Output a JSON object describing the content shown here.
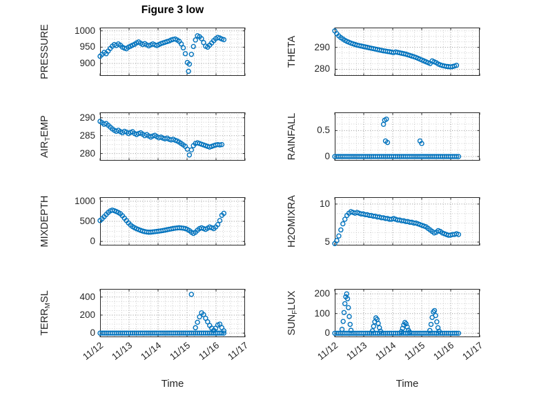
{
  "title": "Figure 3 low",
  "colors": {
    "marker": "#0072BD",
    "axis": "#262626",
    "grid_major": "#8f8f8f",
    "grid_minor": "#cccccc"
  },
  "axes_common": {
    "xlabel": "Time",
    "xlim": [
      0,
      5
    ],
    "xticks": [
      0,
      1,
      2,
      3,
      4,
      5
    ],
    "xtick_labels": [
      "11/12",
      "11/13",
      "11/14",
      "11/15",
      "11/16",
      "11/17"
    ],
    "x_minor_step": 0.25,
    "grid": "major+minor dotted",
    "marker": "o"
  },
  "chart_data": [
    {
      "id": "pressure",
      "type": "scatter",
      "panel": {
        "row": 0,
        "col": 0
      },
      "ylabel_parts": [
        {
          "t": "PRESSURE",
          "sub": false
        }
      ],
      "ylim": [
        862,
        1010
      ],
      "yticks": [
        900,
        950,
        1000
      ],
      "ytick_labels": [
        "900",
        "950",
        "1000"
      ],
      "x": [
        0,
        0.07,
        0.14,
        0.21,
        0.28,
        0.35,
        0.42,
        0.49,
        0.56,
        0.63,
        0.7,
        0.77,
        0.84,
        0.91,
        0.98,
        1.05,
        1.12,
        1.19,
        1.26,
        1.33,
        1.4,
        1.47,
        1.54,
        1.61,
        1.68,
        1.75,
        1.82,
        1.89,
        1.96,
        2.03,
        2.1,
        2.17,
        2.24,
        2.31,
        2.38,
        2.45,
        2.52,
        2.59,
        2.66,
        2.73,
        2.8,
        2.87,
        2.94,
        3.01,
        3.05,
        3.08,
        3.15,
        3.22,
        3.29,
        3.36,
        3.43,
        3.5,
        3.57,
        3.64,
        3.71,
        3.78,
        3.85,
        3.92,
        3.99,
        4.06,
        4.13,
        4.2,
        4.27
      ],
      "y": [
        922,
        928,
        934,
        930,
        938,
        946,
        953,
        958,
        955,
        960,
        956,
        950,
        947,
        945,
        950,
        953,
        956,
        959,
        963,
        966,
        962,
        958,
        961,
        957,
        954,
        957,
        960,
        957,
        955,
        958,
        961,
        963,
        965,
        967,
        969,
        972,
        974,
        975,
        972,
        968,
        960,
        948,
        930,
        903,
        876,
        898,
        928,
        952,
        972,
        985,
        982,
        976,
        964,
        953,
        950,
        956,
        963,
        970,
        976,
        980,
        978,
        975,
        973
      ]
    },
    {
      "id": "theta",
      "type": "scatter",
      "panel": {
        "row": 0,
        "col": 1
      },
      "ylabel_parts": [
        {
          "t": "THETA",
          "sub": false
        }
      ],
      "ylim": [
        277,
        299
      ],
      "yticks": [
        280,
        290
      ],
      "ytick_labels": [
        "280",
        "290"
      ],
      "x": [
        0,
        0.07,
        0.14,
        0.21,
        0.28,
        0.35,
        0.42,
        0.49,
        0.56,
        0.63,
        0.7,
        0.77,
        0.84,
        0.91,
        0.98,
        1.05,
        1.12,
        1.19,
        1.26,
        1.33,
        1.4,
        1.47,
        1.54,
        1.61,
        1.68,
        1.75,
        1.82,
        1.89,
        1.96,
        2.03,
        2.1,
        2.17,
        2.24,
        2.31,
        2.38,
        2.45,
        2.52,
        2.59,
        2.66,
        2.73,
        2.8,
        2.87,
        2.94,
        3.01,
        3.08,
        3.15,
        3.22,
        3.29,
        3.36,
        3.43,
        3.5,
        3.57,
        3.64,
        3.71,
        3.78,
        3.85,
        3.92,
        3.99,
        4.06,
        4.13,
        4.2
      ],
      "y": [
        297.5,
        296.2,
        295.2,
        294.4,
        293.8,
        293.2,
        292.7,
        292.3,
        291.9,
        291.6,
        291.3,
        291,
        290.8,
        290.6,
        290.4,
        290.2,
        290,
        289.8,
        289.6,
        289.4,
        289.2,
        289,
        288.8,
        288.6,
        288.4,
        288.3,
        288.1,
        288,
        287.8,
        287.6,
        287.9,
        287.7,
        287.5,
        287.3,
        287.1,
        286.9,
        286.6,
        286.3,
        286,
        285.7,
        285.4,
        285,
        284.6,
        284.2,
        283.8,
        283.4,
        283,
        282.6,
        283.8,
        283.4,
        283,
        282.4,
        282,
        281.7,
        281.5,
        281.3,
        281.2,
        281.1,
        281.2,
        281.5,
        281.8
      ]
    },
    {
      "id": "air-temp",
      "type": "scatter",
      "panel": {
        "row": 1,
        "col": 0
      },
      "ylabel_parts": [
        {
          "t": "AIR",
          "sub": false
        },
        {
          "t": "T",
          "sub": true
        },
        {
          "t": "EMP",
          "sub": false
        }
      ],
      "ylim": [
        278,
        291.5
      ],
      "yticks": [
        280,
        285,
        290
      ],
      "ytick_labels": [
        "280",
        "285",
        "290"
      ],
      "x": [
        0,
        0.07,
        0.14,
        0.21,
        0.28,
        0.35,
        0.42,
        0.49,
        0.56,
        0.63,
        0.7,
        0.77,
        0.84,
        0.91,
        0.98,
        1.05,
        1.12,
        1.19,
        1.26,
        1.33,
        1.4,
        1.47,
        1.54,
        1.61,
        1.68,
        1.75,
        1.82,
        1.89,
        1.96,
        2.03,
        2.1,
        2.17,
        2.24,
        2.31,
        2.38,
        2.45,
        2.52,
        2.59,
        2.66,
        2.73,
        2.8,
        2.87,
        2.94,
        3.01,
        3.08,
        3.15,
        3.22,
        3.29,
        3.36,
        3.43,
        3.5,
        3.57,
        3.64,
        3.71,
        3.78,
        3.85,
        3.92,
        3.99,
        4.06,
        4.13,
        4.2
      ],
      "y": [
        289,
        288.6,
        288.2,
        288.4,
        287.9,
        287.4,
        286.9,
        286.5,
        286.2,
        286.5,
        286.1,
        285.8,
        286.2,
        286,
        285.6,
        285.9,
        286.1,
        285.6,
        285.3,
        285.6,
        285.8,
        285.4,
        285,
        285.3,
        284.9,
        284.6,
        284.9,
        285.1,
        284.7,
        284.4,
        284.6,
        284.3,
        284.1,
        284.3,
        284,
        283.8,
        284,
        283.7,
        283.5,
        283.2,
        282.8,
        282.4,
        282,
        281.2,
        279.6,
        281,
        282.2,
        282.8,
        283,
        282.8,
        282.6,
        282.4,
        282.2,
        282,
        281.8,
        282,
        282.2,
        282.4,
        282.5,
        282.4,
        282.5
      ]
    },
    {
      "id": "rainfall",
      "type": "scatter",
      "panel": {
        "row": 1,
        "col": 1
      },
      "ylabel_parts": [
        {
          "t": "RAINFALL",
          "sub": false
        }
      ],
      "ylim": [
        -0.08,
        0.85
      ],
      "yticks": [
        0,
        0.5
      ],
      "ytick_labels": [
        "0",
        "0.5"
      ],
      "x": [
        0,
        0.07,
        0.14,
        0.21,
        0.28,
        0.35,
        0.42,
        0.49,
        0.56,
        0.63,
        0.7,
        0.77,
        0.84,
        0.91,
        0.98,
        1.05,
        1.12,
        1.19,
        1.26,
        1.33,
        1.4,
        1.47,
        1.54,
        1.61,
        1.68,
        1.75,
        1.82,
        1.89,
        1.96,
        2.03,
        2.1,
        2.17,
        2.24,
        2.31,
        2.38,
        2.45,
        2.52,
        2.59,
        2.66,
        2.73,
        2.8,
        2.87,
        2.94,
        3.01,
        3.08,
        3.15,
        3.22,
        3.29,
        3.36,
        3.43,
        3.5,
        3.57,
        3.64,
        3.71,
        3.78,
        3.85,
        3.92,
        3.99,
        4.06,
        4.13,
        4.2,
        4.27,
        1.68,
        1.72,
        1.75,
        1.78,
        1.82,
        2.94,
        3.0
      ],
      "y": [
        0,
        0,
        0,
        0,
        0,
        0,
        0,
        0,
        0,
        0,
        0,
        0,
        0,
        0,
        0,
        0,
        0,
        0,
        0,
        0,
        0,
        0,
        0,
        0,
        0,
        0,
        0,
        0,
        0,
        0,
        0,
        0,
        0,
        0,
        0,
        0,
        0,
        0,
        0,
        0,
        0,
        0,
        0,
        0,
        0,
        0,
        0,
        0,
        0,
        0,
        0,
        0,
        0,
        0,
        0,
        0,
        0,
        0,
        0,
        0,
        0,
        0,
        0.62,
        0.7,
        0.3,
        0.72,
        0.27,
        0.3,
        0.25
      ]
    },
    {
      "id": "mixdepth",
      "type": "scatter",
      "panel": {
        "row": 2,
        "col": 0
      },
      "ylabel_parts": [
        {
          "t": "MIXDEPTH",
          "sub": false
        }
      ],
      "ylim": [
        -100,
        1100
      ],
      "yticks": [
        0,
        500,
        1000
      ],
      "ytick_labels": [
        "0",
        "500",
        "1000"
      ],
      "x": [
        0,
        0.07,
        0.14,
        0.21,
        0.28,
        0.35,
        0.42,
        0.49,
        0.56,
        0.63,
        0.7,
        0.77,
        0.84,
        0.91,
        0.98,
        1.05,
        1.12,
        1.19,
        1.26,
        1.33,
        1.4,
        1.47,
        1.54,
        1.61,
        1.68,
        1.75,
        1.82,
        1.89,
        1.96,
        2.03,
        2.1,
        2.17,
        2.24,
        2.31,
        2.38,
        2.45,
        2.52,
        2.59,
        2.66,
        2.73,
        2.8,
        2.87,
        2.94,
        3.01,
        3.08,
        3.15,
        3.22,
        3.29,
        3.36,
        3.43,
        3.5,
        3.57,
        3.64,
        3.71,
        3.78,
        3.85,
        3.92,
        3.99,
        4.06,
        4.13,
        4.2,
        4.27
      ],
      "y": [
        520,
        565,
        615,
        670,
        720,
        760,
        780,
        765,
        745,
        720,
        690,
        640,
        580,
        520,
        460,
        410,
        370,
        340,
        315,
        295,
        275,
        258,
        245,
        236,
        230,
        233,
        238,
        244,
        250,
        257,
        264,
        272,
        282,
        292,
        302,
        312,
        322,
        330,
        336,
        342,
        336,
        330,
        320,
        300,
        270,
        230,
        200,
        230,
        280,
        320,
        340,
        320,
        300,
        330,
        360,
        340,
        320,
        360,
        420,
        520,
        650,
        700
      ]
    },
    {
      "id": "h2omixra",
      "type": "scatter",
      "panel": {
        "row": 2,
        "col": 1
      },
      "ylabel_parts": [
        {
          "t": "H2OMIXRA",
          "sub": false
        }
      ],
      "ylim": [
        4.55,
        10.9
      ],
      "yticks": [
        5,
        10
      ],
      "ytick_labels": [
        "5",
        "10"
      ],
      "x": [
        0,
        0.07,
        0.14,
        0.21,
        0.28,
        0.35,
        0.42,
        0.49,
        0.56,
        0.63,
        0.7,
        0.77,
        0.84,
        0.91,
        0.98,
        1.05,
        1.12,
        1.19,
        1.26,
        1.33,
        1.4,
        1.47,
        1.54,
        1.61,
        1.68,
        1.75,
        1.82,
        1.89,
        1.96,
        2.03,
        2.1,
        2.17,
        2.24,
        2.31,
        2.38,
        2.45,
        2.52,
        2.59,
        2.66,
        2.73,
        2.8,
        2.87,
        2.94,
        3.01,
        3.08,
        3.15,
        3.22,
        3.29,
        3.36,
        3.43,
        3.5,
        3.57,
        3.64,
        3.71,
        3.78,
        3.85,
        3.92,
        3.99,
        4.06,
        4.13,
        4.2,
        4.27
      ],
      "y": [
        4.8,
        5.2,
        5.8,
        6.6,
        7.4,
        8,
        8.5,
        8.8,
        9,
        8.9,
        8.8,
        8.9,
        8.8,
        8.7,
        8.7,
        8.6,
        8.6,
        8.5,
        8.5,
        8.4,
        8.4,
        8.3,
        8.3,
        8.2,
        8.2,
        8.1,
        8.1,
        8,
        8,
        8.1,
        8,
        7.9,
        7.9,
        7.8,
        7.8,
        7.7,
        7.7,
        7.6,
        7.6,
        7.5,
        7.5,
        7.4,
        7.3,
        7.2,
        7.1,
        7,
        6.8,
        6.6,
        6.4,
        6.2,
        6.3,
        6.5,
        6.4,
        6.2,
        6.1,
        6,
        5.9,
        5.9,
        6,
        6,
        6.1,
        6
      ]
    },
    {
      "id": "terr-msl",
      "type": "scatter",
      "panel": {
        "row": 3,
        "col": 0
      },
      "ylabel_parts": [
        {
          "t": "TERR",
          "sub": false
        },
        {
          "t": "M",
          "sub": true
        },
        {
          "t": "SL",
          "sub": false
        }
      ],
      "ylim": [
        -45,
        490
      ],
      "yticks": [
        0,
        200,
        400
      ],
      "ytick_labels": [
        "0",
        "200",
        "400"
      ],
      "x": [
        0,
        0.07,
        0.14,
        0.21,
        0.28,
        0.35,
        0.42,
        0.49,
        0.56,
        0.63,
        0.7,
        0.77,
        0.84,
        0.91,
        0.98,
        1.05,
        1.12,
        1.19,
        1.26,
        1.33,
        1.4,
        1.47,
        1.54,
        1.61,
        1.68,
        1.75,
        1.82,
        1.89,
        1.96,
        2.03,
        2.1,
        2.17,
        2.24,
        2.31,
        2.38,
        2.45,
        2.52,
        2.59,
        2.66,
        2.73,
        2.8,
        2.87,
        2.94,
        3.01,
        3.08,
        3.15,
        3.22,
        3.29,
        3.36,
        3.43,
        3.5,
        3.57,
        3.64,
        3.71,
        3.78,
        3.85,
        3.92,
        3.99,
        4.06,
        4.13,
        4.2,
        4.27,
        3.15,
        3.29,
        3.36,
        3.43,
        3.5,
        3.57,
        3.64,
        3.71,
        3.78,
        3.85,
        3.92,
        3.99,
        4.06,
        4.13,
        4.2,
        4.27
      ],
      "y": [
        0,
        0,
        0,
        0,
        0,
        0,
        0,
        0,
        0,
        0,
        0,
        0,
        0,
        0,
        0,
        0,
        0,
        0,
        0,
        0,
        0,
        0,
        0,
        0,
        0,
        0,
        0,
        0,
        0,
        0,
        0,
        0,
        0,
        0,
        0,
        0,
        0,
        0,
        0,
        0,
        0,
        0,
        0,
        0,
        0,
        0,
        0,
        0,
        0,
        0,
        0,
        0,
        0,
        0,
        0,
        0,
        0,
        0,
        0,
        0,
        0,
        0,
        430,
        60,
        120,
        180,
        225,
        205,
        165,
        125,
        85,
        55,
        30,
        55,
        90,
        100,
        60,
        25
      ]
    },
    {
      "id": "sun-flux",
      "type": "scatter",
      "panel": {
        "row": 3,
        "col": 1
      },
      "ylabel_parts": [
        {
          "t": "SUN",
          "sub": false
        },
        {
          "t": "F",
          "sub": true
        },
        {
          "t": "LUX",
          "sub": false
        }
      ],
      "ylim": [
        -20,
        225
      ],
      "yticks": [
        0,
        100,
        200
      ],
      "ytick_labels": [
        "0",
        "100",
        "200"
      ],
      "x": [
        0,
        0.07,
        0.14,
        0.21,
        0.28,
        0.35,
        0.42,
        0.49,
        0.56,
        0.63,
        0.7,
        0.77,
        0.84,
        0.91,
        0.98,
        1.05,
        1.12,
        1.19,
        1.26,
        1.33,
        1.4,
        1.47,
        1.54,
        1.61,
        1.68,
        1.75,
        1.82,
        1.89,
        1.96,
        2.03,
        2.1,
        2.17,
        2.24,
        2.31,
        2.38,
        2.45,
        2.52,
        2.59,
        2.66,
        2.73,
        2.8,
        2.87,
        2.94,
        3.01,
        3.08,
        3.15,
        3.22,
        3.29,
        3.36,
        3.43,
        3.5,
        3.57,
        3.64,
        3.71,
        3.78,
        3.85,
        3.92,
        3.99,
        4.06,
        4.13,
        4.2,
        4.27,
        0.25,
        0.29,
        0.32,
        0.35,
        0.38,
        0.41,
        0.44,
        0.47,
        0.5,
        0.53,
        0.56,
        1.3,
        1.34,
        1.38,
        1.42,
        1.46,
        1.5,
        1.54,
        1.58,
        2.3,
        2.34,
        2.38,
        2.42,
        2.46,
        2.5,
        2.54,
        2.58,
        3.28,
        3.32,
        3.36,
        3.4,
        3.44,
        3.48,
        3.52,
        3.56,
        3.6
      ],
      "y": [
        0,
        0,
        0,
        0,
        0,
        0,
        0,
        0,
        0,
        0,
        0,
        0,
        0,
        0,
        0,
        0,
        0,
        0,
        0,
        0,
        0,
        0,
        0,
        0,
        0,
        0,
        0,
        0,
        0,
        0,
        0,
        0,
        0,
        0,
        0,
        0,
        0,
        0,
        0,
        0,
        0,
        0,
        0,
        0,
        0,
        0,
        0,
        0,
        0,
        0,
        0,
        0,
        0,
        0,
        0,
        0,
        0,
        0,
        0,
        0,
        0,
        0,
        20,
        60,
        105,
        150,
        185,
        200,
        175,
        130,
        85,
        45,
        15,
        12,
        35,
        58,
        78,
        70,
        50,
        28,
        10,
        8,
        25,
        42,
        55,
        48,
        32,
        15,
        6,
        14,
        45,
        80,
        108,
        115,
        90,
        58,
        28,
        10
      ]
    }
  ]
}
